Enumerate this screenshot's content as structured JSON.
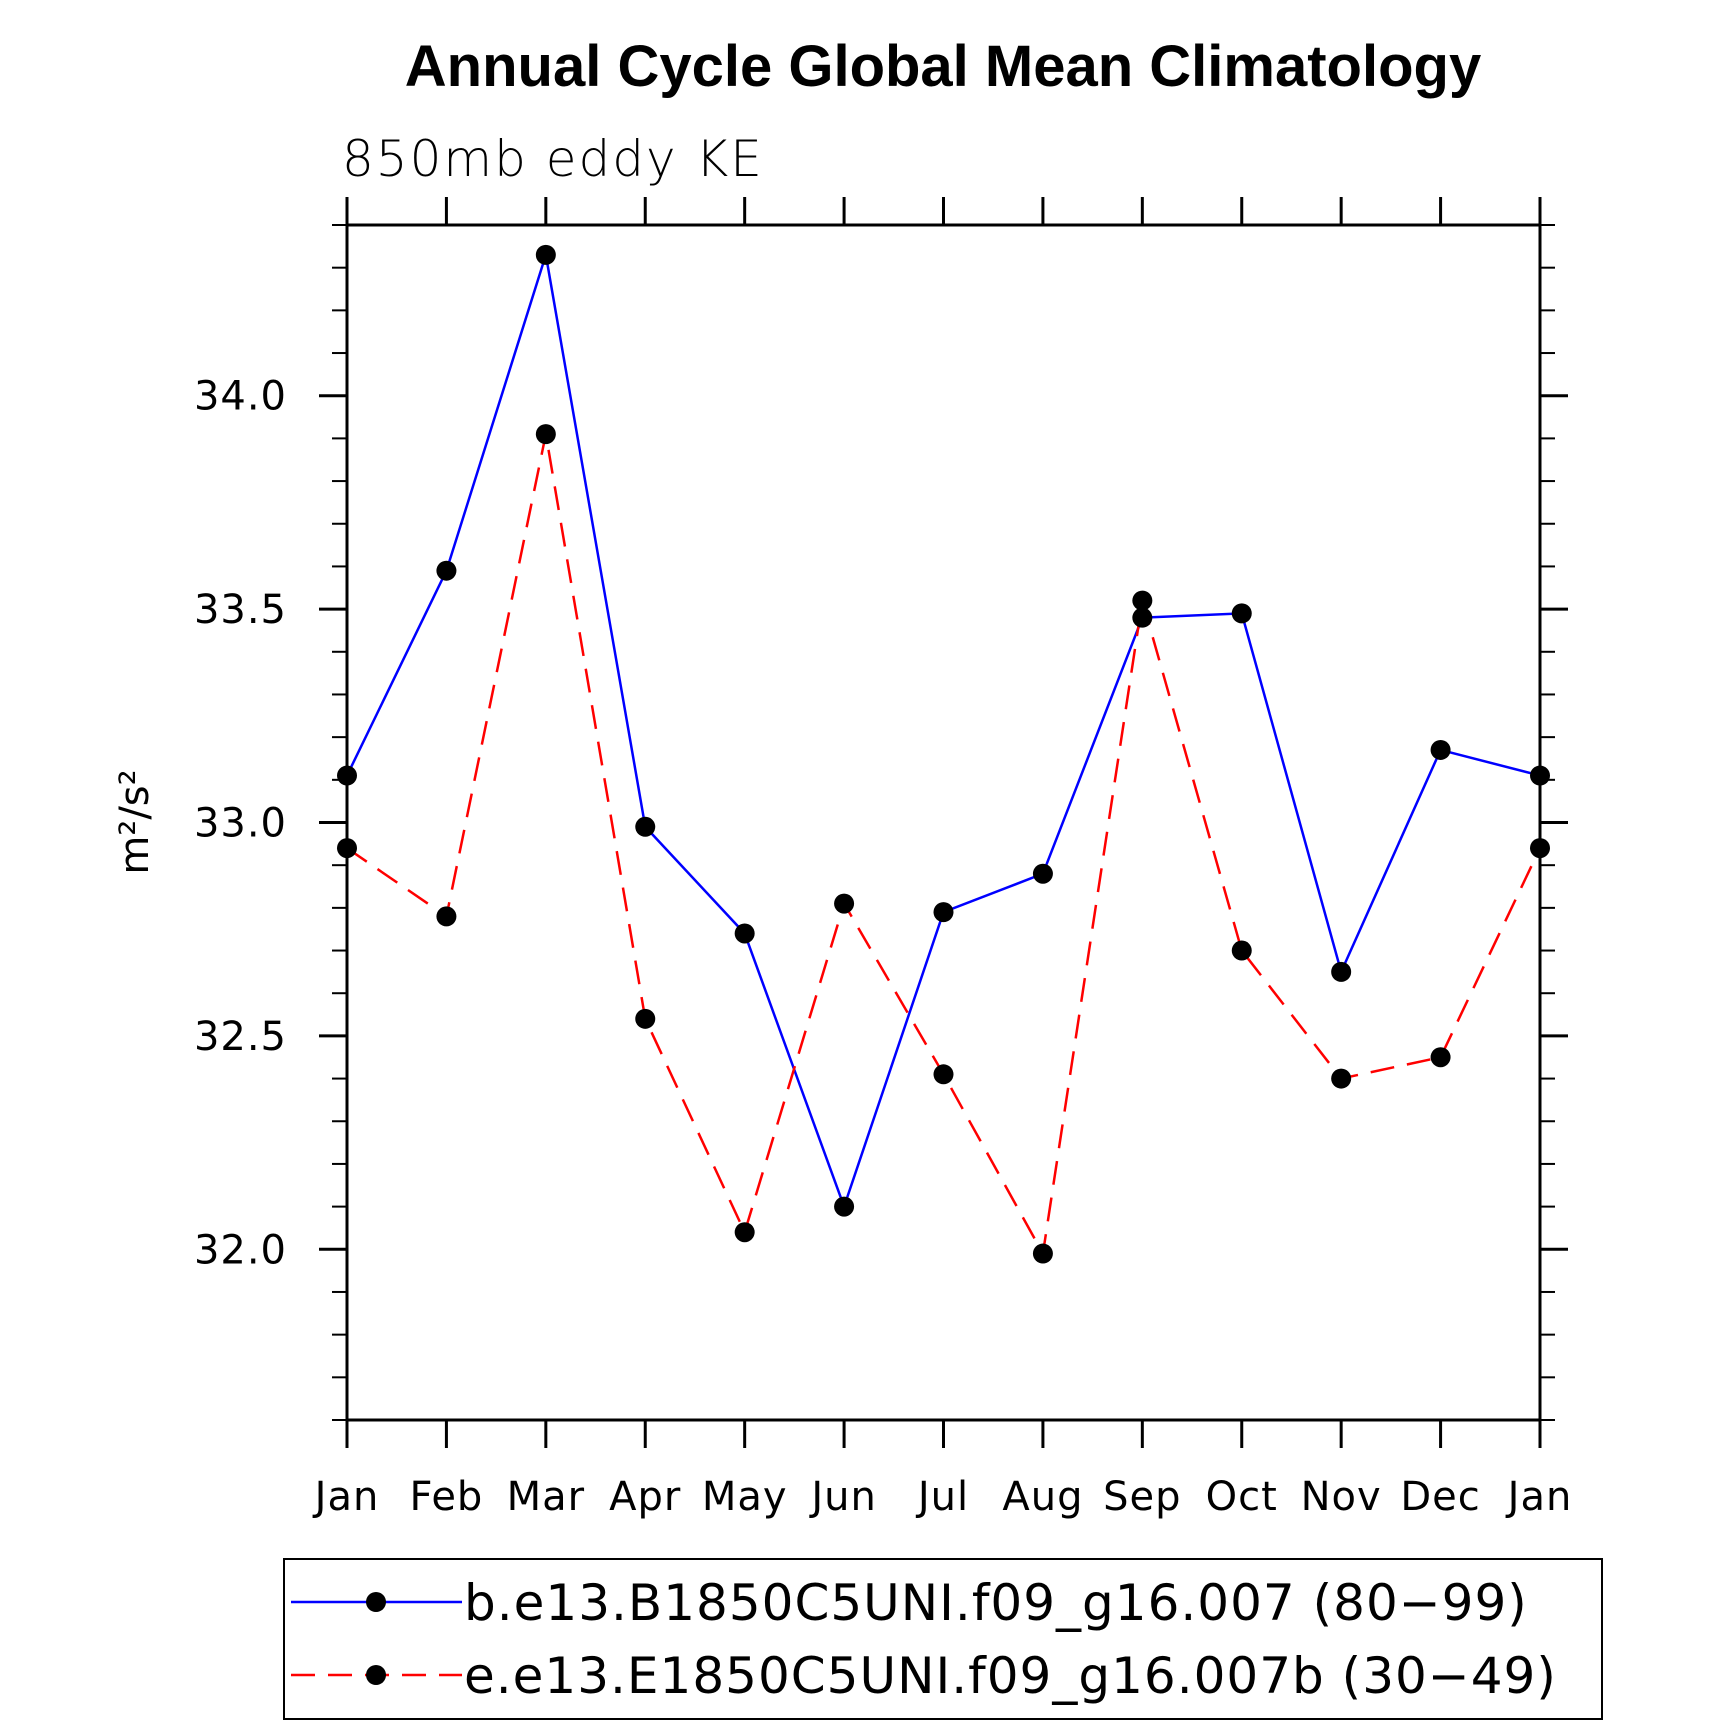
{
  "chart_data": {
    "type": "line",
    "title": "Annual Cycle Global Mean Climatology",
    "subtitle": "850mb eddy KE",
    "ylabel": "m²/s²",
    "xlabel": "",
    "categories": [
      "Jan",
      "Feb",
      "Mar",
      "Apr",
      "May",
      "Jun",
      "Jul",
      "Aug",
      "Sep",
      "Oct",
      "Nov",
      "Dec",
      "Jan"
    ],
    "ylim": [
      31.6,
      34.4
    ],
    "yticks": [
      "32.0",
      "32.5",
      "33.0",
      "33.5",
      "34.0"
    ],
    "grid": false,
    "legend_position": "bottom",
    "series": [
      {
        "name": "b.e13.B1850C5UNI.f09_g16.007 (80−99)",
        "color": "#0000ff",
        "dash": "solid",
        "marker": "filled-circle",
        "values": [
          33.11,
          33.59,
          34.33,
          32.99,
          32.74,
          32.1,
          32.79,
          32.88,
          33.48,
          33.49,
          32.65,
          33.17,
          33.11
        ]
      },
      {
        "name": "e.e13.E1850C5UNI.f09_g16.007b (30−49)",
        "color": "#ff0000",
        "dash": "dashed",
        "marker": "filled-circle",
        "values": [
          32.94,
          32.78,
          33.91,
          32.54,
          32.04,
          32.81,
          32.41,
          31.99,
          33.52,
          32.7,
          32.4,
          32.45,
          32.94
        ]
      }
    ]
  }
}
